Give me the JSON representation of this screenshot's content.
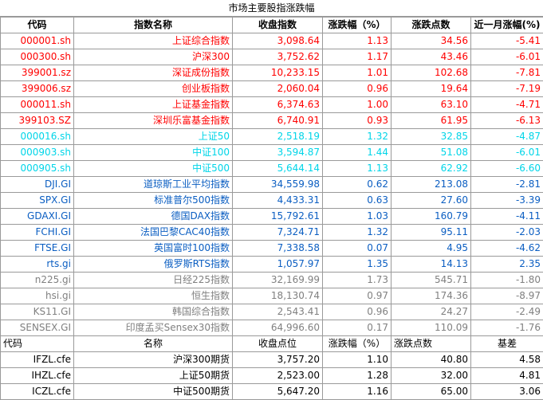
{
  "sheet_title": "市场主要股指涨跌幅",
  "headers": [
    "代码",
    "指数名称",
    "收盘指数",
    "涨跌幅（%）",
    "涨跌点数",
    "近一月涨幅(%)"
  ],
  "rows": [
    {
      "code": "000001.sh",
      "name": "上证综合指数",
      "close": "3,098.64",
      "pct": "1.13",
      "pts": "34.56",
      "month": "-5.41",
      "color": "red"
    },
    {
      "code": "000300.sh",
      "name": "沪深300",
      "close": "3,752.62",
      "pct": "1.17",
      "pts": "43.46",
      "month": "-6.01",
      "color": "red"
    },
    {
      "code": "399001.sz",
      "name": "深证成份指数",
      "close": "10,233.15",
      "pct": "1.01",
      "pts": "102.68",
      "month": "-7.81",
      "color": "red"
    },
    {
      "code": "399006.sz",
      "name": "创业板指数",
      "close": "2,060.04",
      "pct": "0.96",
      "pts": "19.64",
      "month": "-7.19",
      "color": "red"
    },
    {
      "code": "000011.sh",
      "name": "上证基金指数",
      "close": "6,374.63",
      "pct": "1.00",
      "pts": "63.10",
      "month": "-4.71",
      "color": "red"
    },
    {
      "code": "399103.SZ",
      "name": "深圳乐富基金指数",
      "close": "6,740.91",
      "pct": "0.93",
      "pts": "61.95",
      "month": "-6.13",
      "color": "red"
    },
    {
      "code": "000016.sh",
      "name": "上证50",
      "close": "2,518.19",
      "pct": "1.32",
      "pts": "32.85",
      "month": "-4.87",
      "color": "cyan"
    },
    {
      "code": "000903.sh",
      "name": "中证100",
      "close": "3,594.87",
      "pct": "1.44",
      "pts": "51.08",
      "month": "-6.01",
      "color": "cyan"
    },
    {
      "code": "000905.sh",
      "name": "中证500",
      "close": "5,644.14",
      "pct": "1.13",
      "pts": "62.92",
      "month": "-6.60",
      "color": "cyan"
    },
    {
      "code": "DJI.GI",
      "name": "道琼斯工业平均指数",
      "close": "34,559.98",
      "pct": "0.62",
      "pts": "213.08",
      "month": "-2.81",
      "color": "blue"
    },
    {
      "code": "SPX.GI",
      "name": "标准普尔500指数",
      "close": "4,433.31",
      "pct": "0.63",
      "pts": "27.60",
      "month": "-3.39",
      "color": "blue"
    },
    {
      "code": "GDAXI.GI",
      "name": "德国DAX指数",
      "close": "15,792.61",
      "pct": "1.03",
      "pts": "160.79",
      "month": "-4.11",
      "color": "blue"
    },
    {
      "code": "FCHI.GI",
      "name": "法国巴黎CAC40指数",
      "close": "7,324.71",
      "pct": "1.32",
      "pts": "95.11",
      "month": "-2.03",
      "color": "blue"
    },
    {
      "code": "FTSE.GI",
      "name": "英国富时100指数",
      "close": "7,338.58",
      "pct": "0.07",
      "pts": "4.95",
      "month": "-4.62",
      "color": "blue"
    },
    {
      "code": "rts.gi",
      "name": "俄罗斯RTS指数",
      "close": "1,057.97",
      "pct": "1.35",
      "pts": "14.13",
      "month": "2.35",
      "color": "blue"
    },
    {
      "code": "n225.gi",
      "name": "日经225指数",
      "close": "32,169.99",
      "pct": "1.73",
      "pts": "545.71",
      "month": "-1.80",
      "color": "gray"
    },
    {
      "code": "hsi.gi",
      "name": "恒生指数",
      "close": "18,130.74",
      "pct": "0.97",
      "pts": "174.36",
      "month": "-8.97",
      "color": "gray"
    },
    {
      "code": "KS11.GI",
      "name": "韩国综合指数",
      "close": "2,543.41",
      "pct": "0.96",
      "pts": "24.27",
      "month": "-2.49",
      "color": "gray"
    },
    {
      "code": "SENSEX.GI",
      "name": "印度孟买Sensex30指数",
      "close": "64,996.60",
      "pct": "0.17",
      "pts": "110.09",
      "month": "-1.76",
      "color": "gray"
    }
  ],
  "headers2": [
    "代码",
    "名称",
    "收盘点位",
    "涨跌幅（%）",
    "涨跌点数",
    "基差"
  ],
  "futures": [
    {
      "code": "IFZL.cfe",
      "name": "沪深300期货",
      "close": "3,757.20",
      "pct": "1.10",
      "pts": "40.80",
      "basis": "4.58"
    },
    {
      "code": "IHZL.cfe",
      "name": "上证50期货",
      "close": "2,523.00",
      "pct": "1.28",
      "pts": "32.00",
      "basis": "4.81"
    },
    {
      "code": "ICZL.cfe",
      "name": "中证500期货",
      "close": "5,647.20",
      "pct": "1.16",
      "pts": "65.00",
      "basis": "3.06"
    }
  ]
}
